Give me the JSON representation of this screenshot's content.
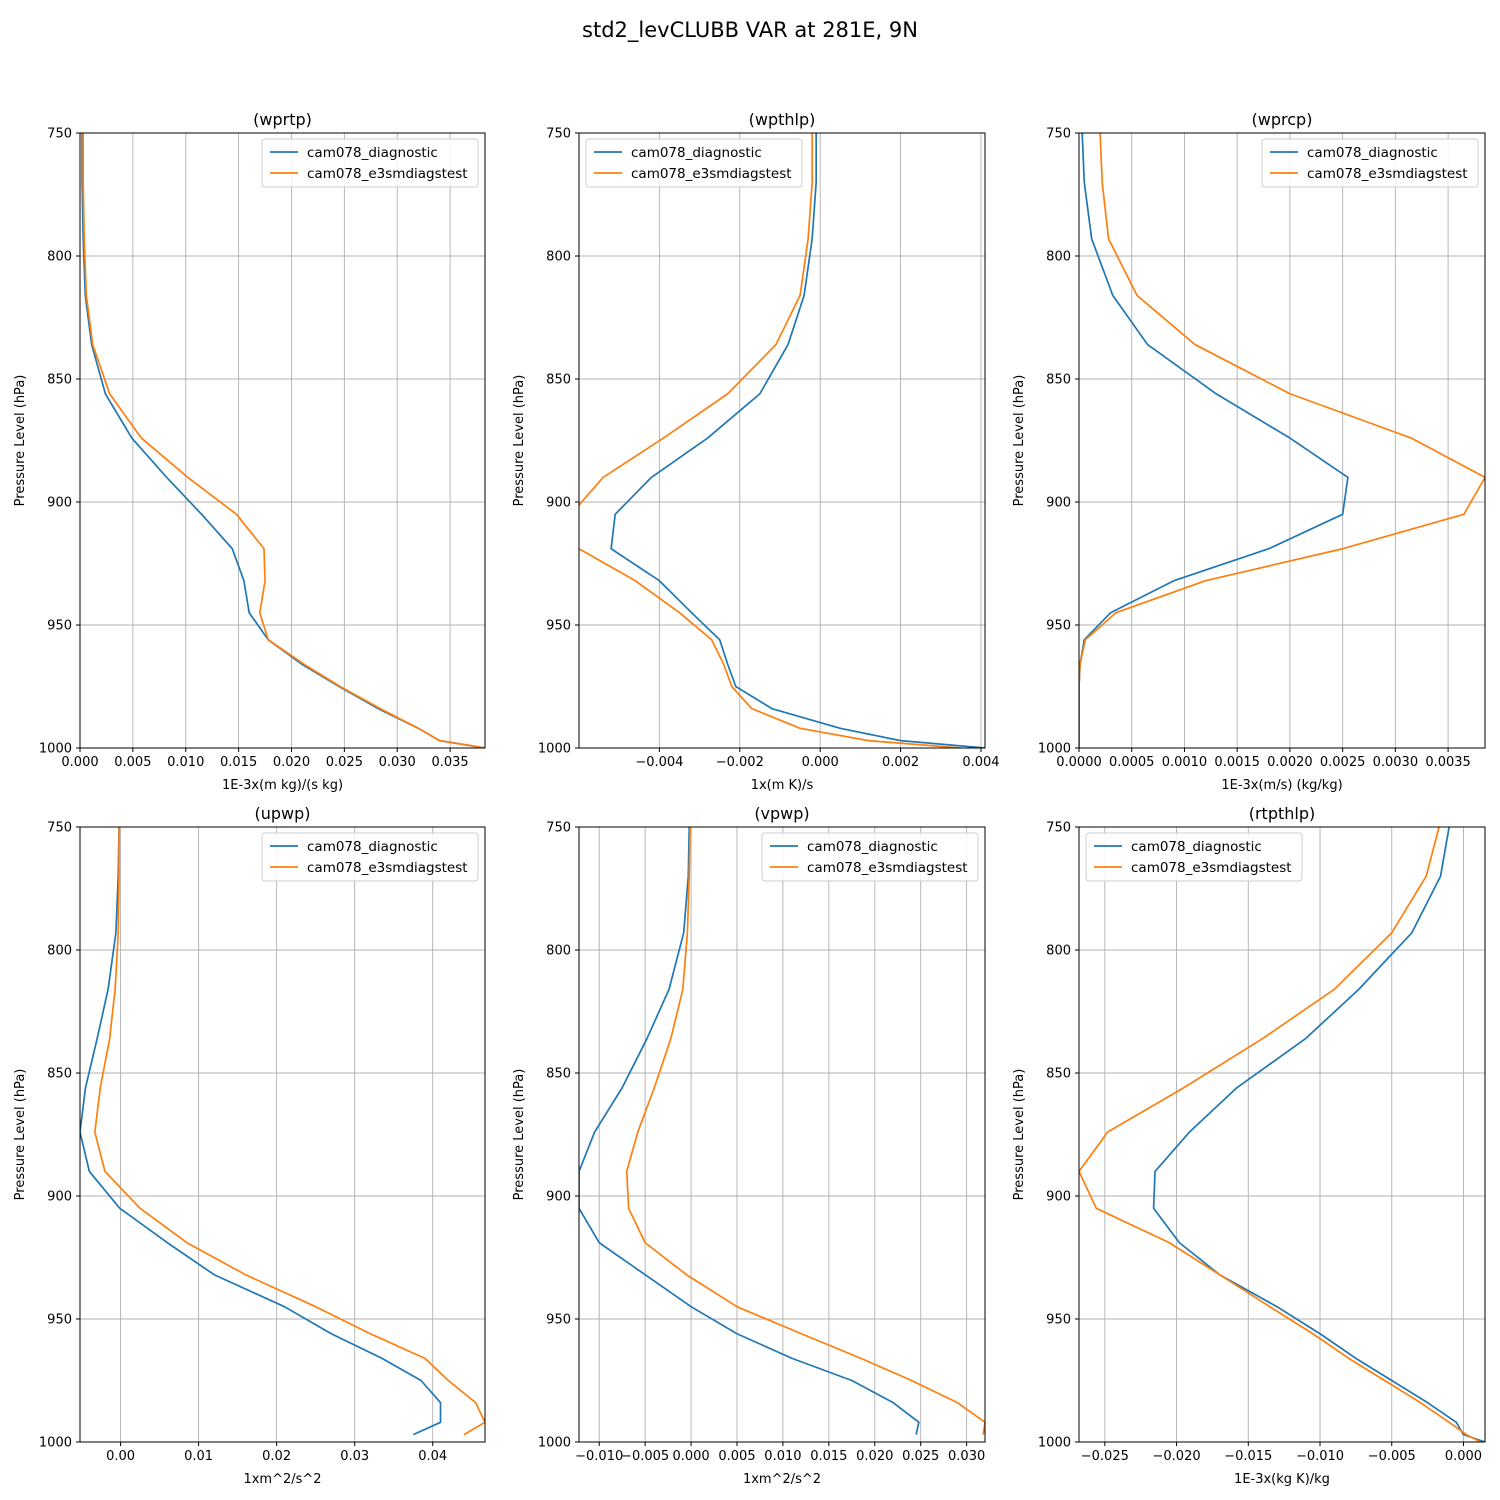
{
  "figure": {
    "title": "std2_levCLUBB VAR at 281E, 9N",
    "colors": {
      "series0": "#1f77b4",
      "series1": "#ff7f0e",
      "grid": "#b0b0b0"
    }
  },
  "chart_data": [
    {
      "type": "line",
      "title": "(wprtp)",
      "xlabel": "1E-3x(m kg)/(s kg)",
      "ylabel": "Pressure Level (hPa)",
      "xlim": [
        0.0,
        0.0383
      ],
      "ylim": [
        1000,
        750
      ],
      "xticks": [
        0.0,
        0.005,
        0.01,
        0.015,
        0.02,
        0.025,
        0.03,
        0.035
      ],
      "xtick_labels": [
        "0.000",
        "0.005",
        "0.010",
        "0.015",
        "0.020",
        "0.025",
        "0.030",
        "0.035"
      ],
      "yticks": [
        750,
        800,
        850,
        900,
        950,
        1000
      ],
      "ytick_labels": [
        "750",
        "800",
        "850",
        "900",
        "950",
        "1000"
      ],
      "grid": true,
      "legend_loc": "upper right",
      "series": [
        {
          "name": "cam078_diagnostic",
          "x": [
            0.0002,
            0.0002,
            0.0003,
            0.0005,
            0.0011,
            0.0024,
            0.0049,
            0.0082,
            0.0115,
            0.0144,
            0.0155,
            0.016,
            0.0178,
            0.021,
            0.0245,
            0.0282,
            0.032,
            0.034,
            0.0383
          ],
          "y": [
            750,
            770,
            793,
            816,
            836,
            856,
            874,
            890,
            905,
            919,
            932,
            945,
            956,
            966,
            975,
            984,
            992,
            997,
            1000
          ]
        },
        {
          "name": "cam078_e3smdiagstest",
          "x": [
            0.0003,
            0.0003,
            0.0004,
            0.0006,
            0.0012,
            0.0028,
            0.0058,
            0.0102,
            0.0148,
            0.0174,
            0.0175,
            0.017,
            0.0178,
            0.0212,
            0.0246,
            0.0284,
            0.032,
            0.034,
            0.0383
          ],
          "y": [
            750,
            770,
            793,
            816,
            836,
            856,
            874,
            890,
            905,
            919,
            932,
            945,
            956,
            966,
            975,
            984,
            992,
            997,
            1000
          ]
        }
      ]
    },
    {
      "type": "line",
      "title": "(wpthlp)",
      "xlabel": "1x(m K)/s",
      "ylabel": "Pressure Level (hPa)",
      "xlim": [
        -0.006,
        0.0041
      ],
      "ylim": [
        1000,
        750
      ],
      "xticks": [
        -0.004,
        -0.002,
        0.0,
        0.002,
        0.004
      ],
      "xtick_labels": [
        "−0.004",
        "−0.002",
        "0.000",
        "0.002",
        "0.004"
      ],
      "yticks": [
        750,
        800,
        850,
        900,
        950,
        1000
      ],
      "ytick_labels": [
        "750",
        "800",
        "850",
        "900",
        "950",
        "1000"
      ],
      "grid": true,
      "legend_loc": "upper left",
      "series": [
        {
          "name": "cam078_diagnostic",
          "x": [
            -0.0001,
            -0.0001,
            -0.0002,
            -0.0004,
            -0.0008,
            -0.0015,
            -0.0028,
            -0.0042,
            -0.0051,
            -0.0052,
            -0.004,
            -0.0032,
            -0.0025,
            -0.0023,
            -0.0021,
            -0.0012,
            0.0005,
            0.002,
            0.0041
          ],
          "y": [
            750,
            770,
            793,
            816,
            836,
            856,
            874,
            890,
            905,
            919,
            932,
            945,
            956,
            966,
            975,
            984,
            992,
            997,
            1000
          ]
        },
        {
          "name": "cam078_e3smdiagstest",
          "x": [
            -0.0002,
            -0.0002,
            -0.0003,
            -0.0005,
            -0.0011,
            -0.0023,
            -0.0039,
            -0.0054,
            -0.0062,
            -0.006,
            -0.0046,
            -0.0035,
            -0.0027,
            -0.0024,
            -0.0022,
            -0.0017,
            -0.0005,
            0.0012,
            0.0035
          ],
          "y": [
            750,
            770,
            793,
            816,
            836,
            856,
            874,
            890,
            905,
            919,
            932,
            945,
            956,
            966,
            975,
            984,
            992,
            997,
            1000
          ]
        }
      ]
    },
    {
      "type": "line",
      "title": "(wprcp)",
      "xlabel": "1E-3x(m/s) (kg/kg)",
      "ylabel": "Pressure Level (hPa)",
      "xlim": [
        0.0,
        0.00385
      ],
      "ylim": [
        1000,
        750
      ],
      "xticks": [
        0.0,
        0.0005,
        0.001,
        0.0015,
        0.002,
        0.0025,
        0.003,
        0.0035
      ],
      "xtick_labels": [
        "0.0000",
        "0.0005",
        "0.0010",
        "0.0015",
        "0.0020",
        "0.0025",
        "0.0030",
        "0.0035"
      ],
      "yticks": [
        750,
        800,
        850,
        900,
        950,
        1000
      ],
      "ytick_labels": [
        "750",
        "800",
        "850",
        "900",
        "950",
        "1000"
      ],
      "grid": true,
      "legend_loc": "upper right",
      "series": [
        {
          "name": "cam078_diagnostic",
          "x": [
            3e-05,
            5e-05,
            0.00012,
            0.00032,
            0.00065,
            0.0013,
            0.002,
            0.00255,
            0.0025,
            0.0018,
            0.0009,
            0.0003,
            5e-05,
            1e-05,
            0.0,
            0.0,
            0.0,
            0.0,
            0.0
          ],
          "y": [
            750,
            770,
            793,
            816,
            836,
            856,
            874,
            890,
            905,
            919,
            932,
            945,
            956,
            966,
            975,
            984,
            992,
            997,
            1000
          ]
        },
        {
          "name": "cam078_e3smdiagstest",
          "x": [
            0.0002,
            0.00022,
            0.00028,
            0.00055,
            0.0011,
            0.002,
            0.00315,
            0.00385,
            0.00365,
            0.0025,
            0.0012,
            0.00035,
            6e-05,
            1e-05,
            0.0,
            0.0,
            0.0,
            0.0,
            0.0
          ],
          "y": [
            750,
            770,
            793,
            816,
            836,
            856,
            874,
            890,
            905,
            919,
            932,
            945,
            956,
            966,
            975,
            984,
            992,
            997,
            1000
          ]
        }
      ]
    },
    {
      "type": "line",
      "title": "(upwp)",
      "xlabel": "1xm^2/s^2",
      "ylabel": "Pressure Level (hPa)",
      "xlim": [
        -0.0052,
        0.0467
      ],
      "ylim": [
        1000,
        750
      ],
      "xticks": [
        0.0,
        0.01,
        0.02,
        0.03,
        0.04
      ],
      "xtick_labels": [
        "0.00",
        "0.01",
        "0.02",
        "0.03",
        "0.04"
      ],
      "yticks": [
        750,
        800,
        850,
        900,
        950,
        1000
      ],
      "ytick_labels": [
        "750",
        "800",
        "850",
        "900",
        "950",
        "1000"
      ],
      "grid": true,
      "legend_loc": "upper right",
      "series": [
        {
          "name": "cam078_diagnostic",
          "x": [
            -0.0002,
            -0.0003,
            -0.0006,
            -0.0016,
            -0.003,
            -0.0045,
            -0.0052,
            -0.004,
            -0.0001,
            0.006,
            0.012,
            0.021,
            0.027,
            0.0335,
            0.0385,
            0.041,
            0.041,
            0.0375
          ],
          "y": [
            750,
            770,
            793,
            816,
            836,
            856,
            874,
            890,
            905,
            919,
            932,
            945,
            956,
            966,
            975,
            984,
            992,
            997
          ]
        },
        {
          "name": "cam078_e3smdiagstest",
          "x": [
            -0.0002,
            -0.0002,
            -0.0003,
            -0.0007,
            -0.0014,
            -0.0026,
            -0.0033,
            -0.002,
            0.0025,
            0.0085,
            0.016,
            0.025,
            0.032,
            0.039,
            0.042,
            0.0455,
            0.0467,
            0.044
          ],
          "y": [
            750,
            770,
            793,
            816,
            836,
            856,
            874,
            890,
            905,
            919,
            932,
            945,
            956,
            966,
            975,
            984,
            992,
            997
          ]
        }
      ]
    },
    {
      "type": "line",
      "title": "(vpwp)",
      "xlabel": "1xm^2/s^2",
      "ylabel": "Pressure Level (hPa)",
      "xlim": [
        -0.0122,
        0.032
      ],
      "ylim": [
        1000,
        750
      ],
      "xticks": [
        -0.01,
        -0.005,
        0.0,
        0.005,
        0.01,
        0.015,
        0.02,
        0.025,
        0.03
      ],
      "xtick_labels": [
        "−0.010",
        "−0.005",
        "0.000",
        "0.005",
        "0.010",
        "0.015",
        "0.020",
        "0.025",
        "0.030"
      ],
      "yticks": [
        750,
        800,
        850,
        900,
        950,
        1000
      ],
      "ytick_labels": [
        "750",
        "800",
        "850",
        "900",
        "950",
        "1000"
      ],
      "grid": true,
      "legend_loc": "upper right",
      "series": [
        {
          "name": "cam078_diagnostic",
          "x": [
            -0.0002,
            -0.0003,
            -0.0008,
            -0.0024,
            -0.0048,
            -0.0075,
            -0.0105,
            -0.0122,
            -0.0122,
            -0.01,
            -0.005,
            0.0,
            0.005,
            0.011,
            0.0175,
            0.022,
            0.0248,
            0.0245
          ],
          "y": [
            750,
            770,
            793,
            816,
            836,
            856,
            874,
            890,
            905,
            919,
            932,
            945,
            956,
            966,
            975,
            984,
            992,
            997
          ]
        },
        {
          "name": "cam078_e3smdiagstest",
          "x": [
            -0.0001,
            -0.0002,
            -0.0004,
            -0.0009,
            -0.0022,
            -0.004,
            -0.0058,
            -0.007,
            -0.0068,
            -0.005,
            -0.0005,
            0.005,
            0.012,
            0.0185,
            0.024,
            0.029,
            0.032,
            0.0318
          ],
          "y": [
            750,
            770,
            793,
            816,
            836,
            856,
            874,
            890,
            905,
            919,
            932,
            945,
            956,
            966,
            975,
            984,
            992,
            997
          ]
        }
      ]
    },
    {
      "type": "line",
      "title": "(rtpthlp)",
      "xlabel": "1E-3x(kg K)/kg",
      "ylabel": "Pressure Level (hPa)",
      "xlim": [
        -0.0268,
        0.0015
      ],
      "ylim": [
        1000,
        750
      ],
      "xticks": [
        -0.025,
        -0.02,
        -0.015,
        -0.01,
        -0.005,
        0.0
      ],
      "xtick_labels": [
        "−0.025",
        "−0.020",
        "−0.015",
        "−0.010",
        "−0.005",
        "0.000"
      ],
      "yticks": [
        750,
        800,
        850,
        900,
        950,
        1000
      ],
      "ytick_labels": [
        "750",
        "800",
        "850",
        "900",
        "950",
        "1000"
      ],
      "grid": true,
      "legend_loc": "upper left",
      "series": [
        {
          "name": "cam078_diagnostic",
          "x": [
            -0.001,
            -0.0016,
            -0.0036,
            -0.0073,
            -0.011,
            -0.0158,
            -0.0191,
            -0.0215,
            -0.0216,
            -0.0198,
            -0.017,
            -0.013,
            -0.01,
            -0.0075,
            -0.005,
            -0.0025,
            -0.0005,
            0.0,
            0.0015
          ],
          "y": [
            750,
            770,
            793,
            816,
            836,
            856,
            874,
            890,
            905,
            919,
            932,
            945,
            956,
            966,
            975,
            984,
            992,
            997,
            1000
          ]
        },
        {
          "name": "cam078_e3smdiagstest",
          "x": [
            -0.0017,
            -0.0026,
            -0.005,
            -0.009,
            -0.014,
            -0.0195,
            -0.0248,
            -0.0268,
            -0.0256,
            -0.0205,
            -0.017,
            -0.0135,
            -0.0105,
            -0.008,
            -0.0055,
            -0.003,
            -0.001,
            0.0002,
            0.0012
          ],
          "y": [
            750,
            770,
            793,
            816,
            836,
            856,
            874,
            890,
            905,
            919,
            932,
            945,
            956,
            966,
            975,
            984,
            992,
            997,
            1000
          ]
        }
      ]
    }
  ]
}
